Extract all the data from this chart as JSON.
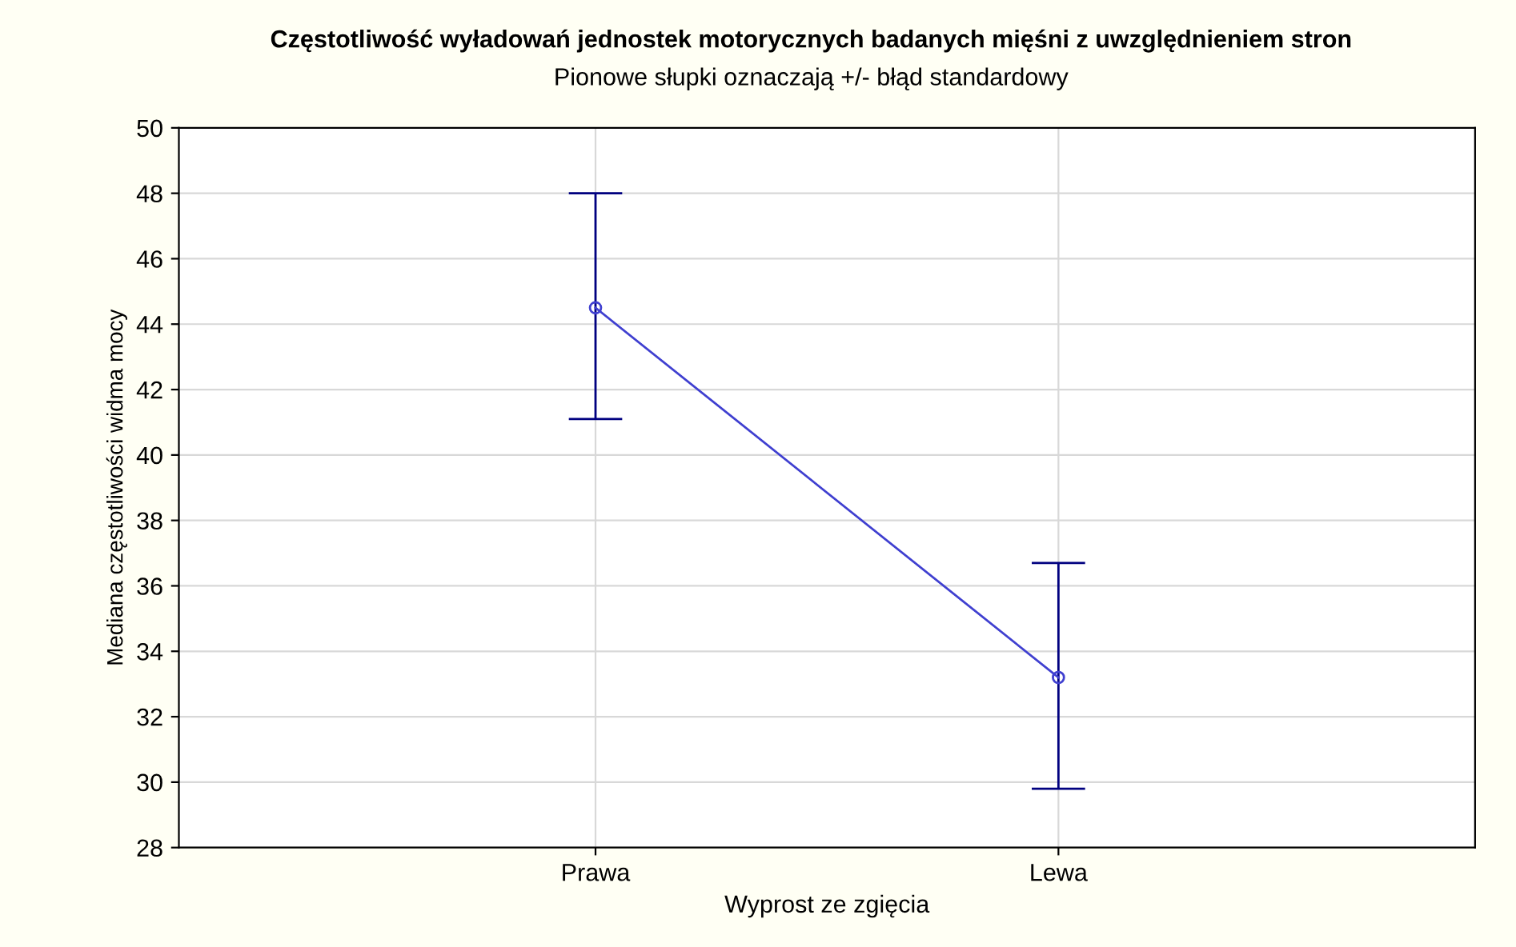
{
  "chart_data": {
    "type": "line",
    "title": "Częstotliwość wyładowań jednostek motorycznych badanych mięśni z uwzględnieniem stron",
    "subtitle": "Pionowe słupki oznaczają +/- błąd standardowy",
    "xlabel": "Wyprost ze zgięcia",
    "ylabel": "Mediana częstotliwości widma mocy",
    "categories": [
      "Prawa",
      "Lewa"
    ],
    "series": [
      {
        "color": "#4040d0",
        "values": [
          44.5,
          33.2
        ],
        "errors": [
          [
            41.1,
            48.0
          ],
          [
            29.8,
            36.7
          ]
        ]
      }
    ],
    "ylim": [
      28,
      50
    ],
    "yticks": [
      28,
      30,
      32,
      34,
      36,
      38,
      40,
      42,
      44,
      46,
      48,
      50
    ],
    "grid": true,
    "marker": "circle",
    "line_style": "solid"
  }
}
